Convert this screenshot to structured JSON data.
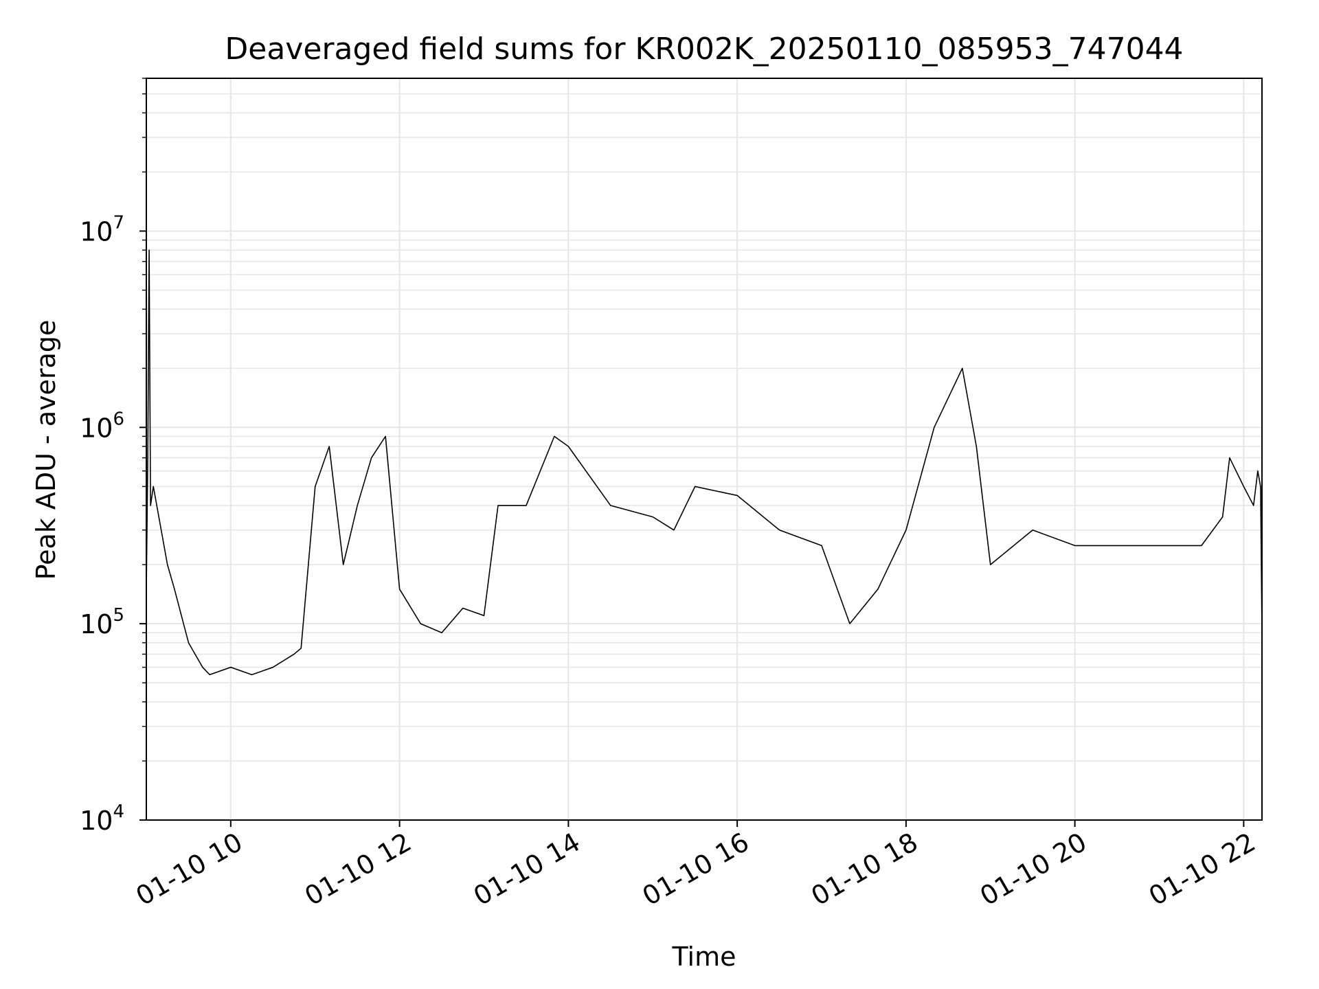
{
  "chart_data": {
    "type": "line",
    "title": "Deaveraged field sums for KR002K_20250110_085953_747044",
    "xlabel": "Time",
    "ylabel": "Peak ADU - average",
    "y_scale": "log",
    "ylim": [
      10000,
      60000000
    ],
    "xlim": [
      "2025-01-10 09:00",
      "2025-01-10 22:13"
    ],
    "grid": true,
    "line_color": "#000000",
    "grid_color": "#e6e6e6",
    "x_ticks": [
      {
        "value": "2025-01-10 10:00",
        "label": "01-10 10"
      },
      {
        "value": "2025-01-10 12:00",
        "label": "01-10 12"
      },
      {
        "value": "2025-01-10 14:00",
        "label": "01-10 14"
      },
      {
        "value": "2025-01-10 16:00",
        "label": "01-10 16"
      },
      {
        "value": "2025-01-10 18:00",
        "label": "01-10 18"
      },
      {
        "value": "2025-01-10 20:00",
        "label": "01-10 20"
      },
      {
        "value": "2025-01-10 22:00",
        "label": "01-10 22"
      }
    ],
    "y_ticks": [
      {
        "value": 10000,
        "base": "10",
        "exp": "4"
      },
      {
        "value": 100000,
        "base": "10",
        "exp": "5"
      },
      {
        "value": 1000000,
        "base": "10",
        "exp": "6"
      },
      {
        "value": 10000000,
        "base": "10",
        "exp": "7"
      }
    ],
    "series": [
      {
        "x": [
          "2025-01-10 09:00",
          "2025-01-10 09:01",
          "2025-01-10 09:02",
          "2025-01-10 09:03",
          "2025-01-10 09:05",
          "2025-01-10 09:15",
          "2025-01-10 09:20",
          "2025-01-10 09:30",
          "2025-01-10 09:40",
          "2025-01-10 09:45",
          "2025-01-10 10:00",
          "2025-01-10 10:15",
          "2025-01-10 10:30",
          "2025-01-10 10:45",
          "2025-01-10 10:50",
          "2025-01-10 11:00",
          "2025-01-10 11:10",
          "2025-01-10 11:20",
          "2025-01-10 11:30",
          "2025-01-10 11:40",
          "2025-01-10 11:50",
          "2025-01-10 12:00",
          "2025-01-10 12:15",
          "2025-01-10 12:30",
          "2025-01-10 12:45",
          "2025-01-10 13:00",
          "2025-01-10 13:10",
          "2025-01-10 13:30",
          "2025-01-10 13:50",
          "2025-01-10 14:00",
          "2025-01-10 14:30",
          "2025-01-10 15:00",
          "2025-01-10 15:15",
          "2025-01-10 15:30",
          "2025-01-10 16:00",
          "2025-01-10 16:30",
          "2025-01-10 17:00",
          "2025-01-10 17:20",
          "2025-01-10 17:40",
          "2025-01-10 18:00",
          "2025-01-10 18:20",
          "2025-01-10 18:40",
          "2025-01-10 18:50",
          "2025-01-10 19:00",
          "2025-01-10 19:30",
          "2025-01-10 20:00",
          "2025-01-10 20:30",
          "2025-01-10 21:00",
          "2025-01-10 21:30",
          "2025-01-10 21:45",
          "2025-01-10 21:50",
          "2025-01-10 22:00",
          "2025-01-10 22:07",
          "2025-01-10 22:10",
          "2025-01-10 22:12",
          "2025-01-10 22:13"
        ],
        "y": [
          150000,
          650000,
          8000000,
          400000,
          500000,
          200000,
          150000,
          80000,
          60000,
          55000,
          60000,
          55000,
          60000,
          70000,
          75000,
          500000,
          800000,
          200000,
          400000,
          700000,
          900000,
          150000,
          100000,
          90000,
          120000,
          110000,
          400000,
          400000,
          900000,
          800000,
          400000,
          350000,
          300000,
          500000,
          450000,
          300000,
          250000,
          100000,
          150000,
          300000,
          1000000,
          2000000,
          800000,
          200000,
          300000,
          250000,
          250000,
          250000,
          250000,
          350000,
          700000,
          500000,
          400000,
          600000,
          500000,
          90000
        ]
      }
    ]
  }
}
